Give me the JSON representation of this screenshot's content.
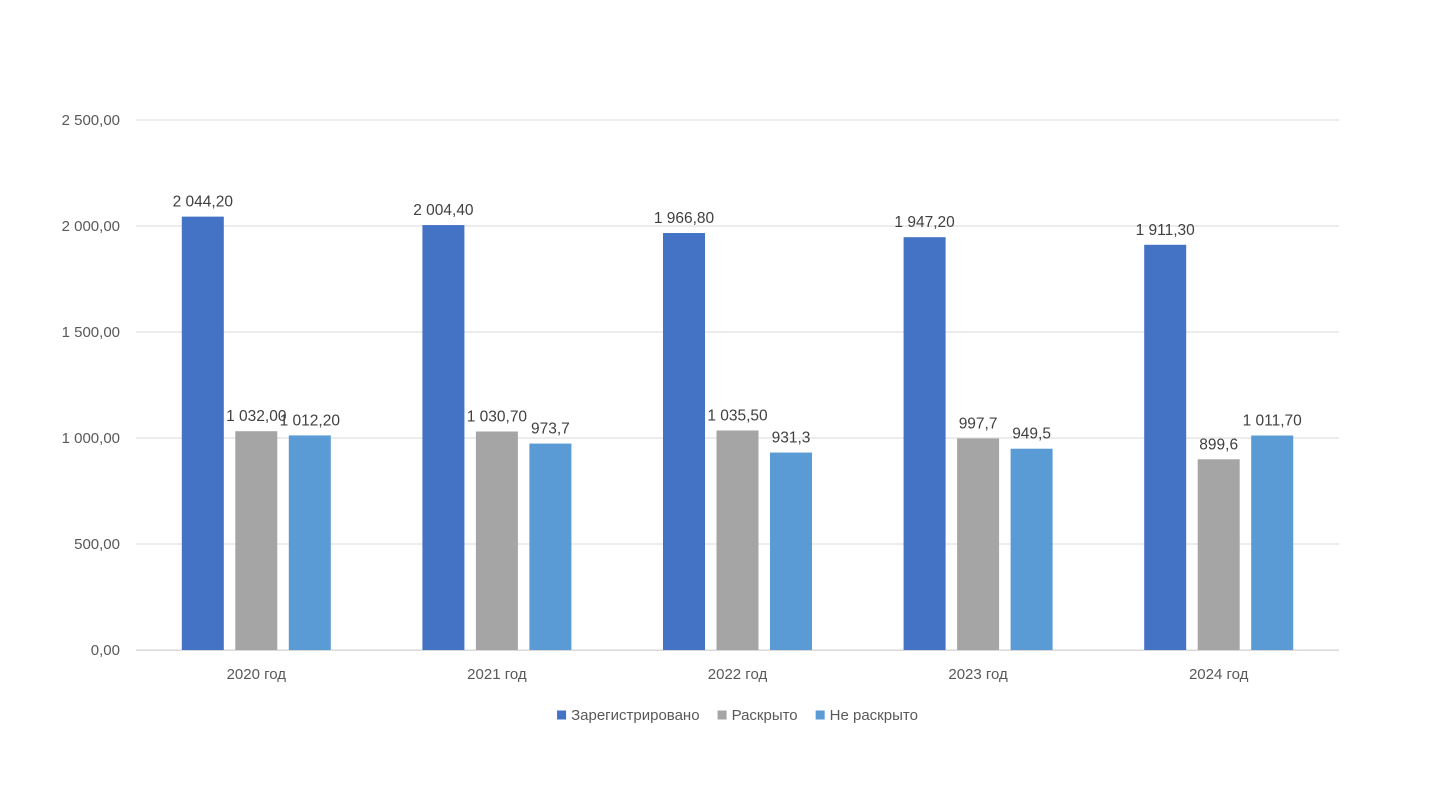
{
  "chart_data": {
    "type": "bar",
    "title": "",
    "xlabel": "",
    "ylabel": "",
    "categories": [
      "2020 год",
      "2021 год",
      "2022 год",
      "2023 год",
      "2024 год"
    ],
    "series": [
      {
        "name": "Зарегистрировано",
        "color": "#4472C4",
        "values": [
          2044.2,
          2004.4,
          1966.8,
          1947.2,
          1911.3
        ],
        "labels": [
          "2 044,20",
          "2 004,40",
          "1 966,80",
          "1 947,20",
          "1 911,30"
        ]
      },
      {
        "name": "Раскрыто",
        "color": "#A5A5A5",
        "values": [
          1032.0,
          1030.7,
          1035.5,
          997.7,
          899.6
        ],
        "labels": [
          "1 032,00",
          "1 030,70",
          "1 035,50",
          "997,7",
          "899,6"
        ]
      },
      {
        "name": "Не раскрыто",
        "color": "#5B9BD5",
        "values": [
          1012.2,
          973.7,
          931.3,
          949.5,
          1011.7
        ],
        "labels": [
          "1 012,20",
          "973,7",
          "931,3",
          "949,5",
          "1 011,70"
        ]
      }
    ],
    "ylim": [
      0,
      2500
    ],
    "yticks": [
      0,
      500,
      1000,
      1500,
      2000,
      2500
    ],
    "ytick_labels": [
      "0,00",
      "500,00",
      "1 000,00",
      "1 500,00",
      "2 000,00",
      "2 500,00"
    ],
    "grid": true,
    "gridline_color": "#D9D9D9",
    "legend_position": "bottom"
  }
}
